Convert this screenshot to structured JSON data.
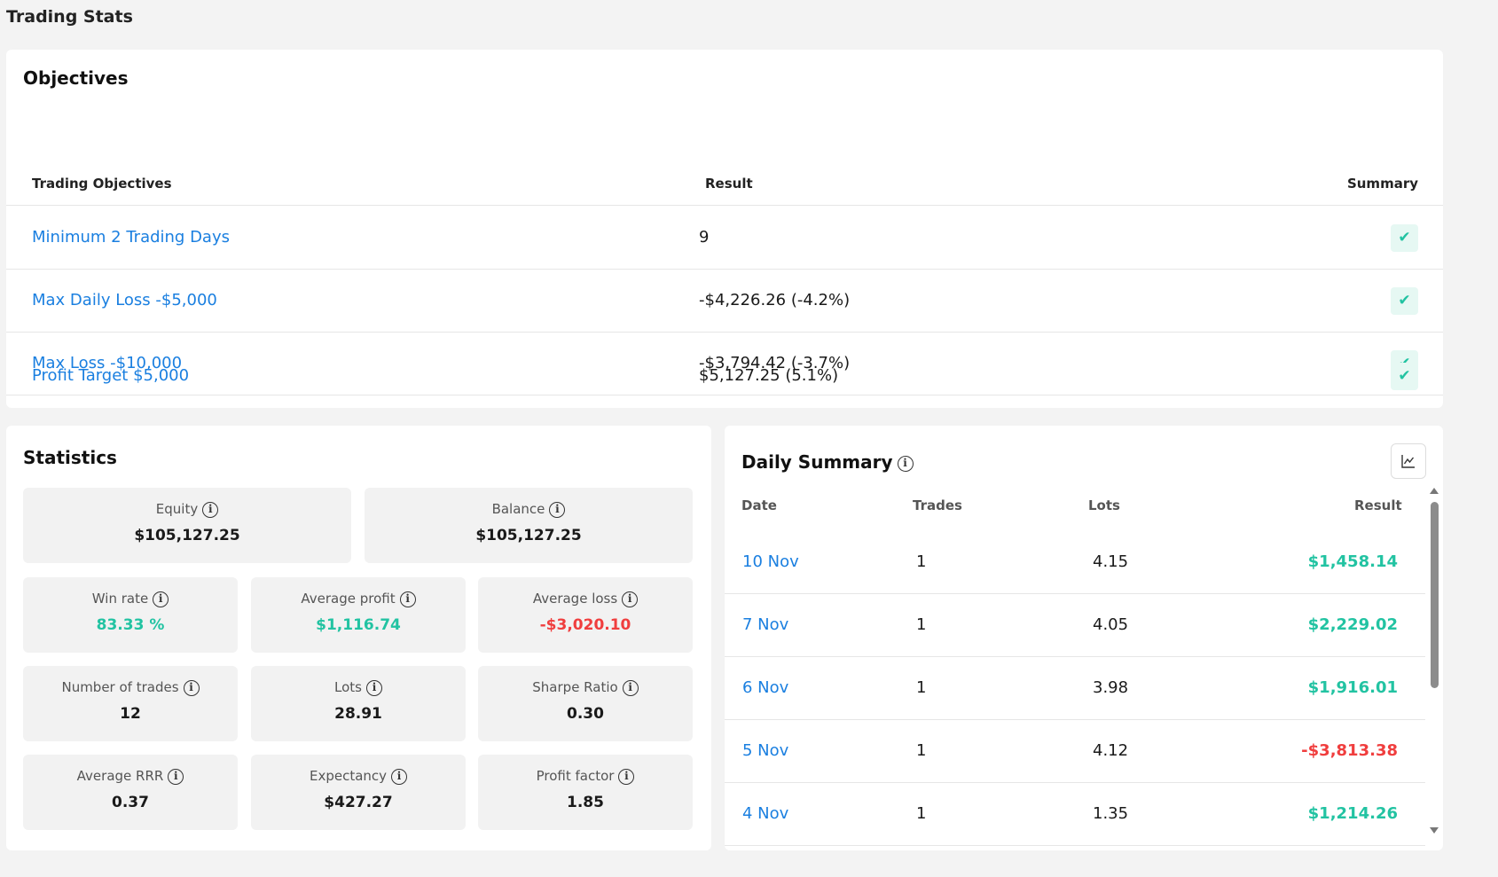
{
  "page_title": "Trading Stats",
  "objectives": {
    "title": "Objectives",
    "headers": {
      "objective": "Trading Objectives",
      "result": "Result",
      "summary": "Summary"
    },
    "rows": [
      {
        "name": "Minimum 2 Trading Days",
        "result": "9",
        "status": "✔"
      },
      {
        "name": "Max Daily Loss -$5,000",
        "result": "-$4,226.26 (-4.2%)",
        "status": "✔"
      },
      {
        "name": "Max Loss -$10,000",
        "result": "-$3,794.42 (-3.7%)",
        "status": "✔"
      },
      {
        "name": "Profit Target $5,000",
        "result": "$5,127.25 (5.1%)",
        "status": "✔"
      }
    ]
  },
  "statistics": {
    "title": "Statistics",
    "info_icon": "i",
    "tiles": [
      {
        "label": "Equity",
        "value": "$105,127.25",
        "tone": "neutral"
      },
      {
        "label": "Balance",
        "value": "$105,127.25",
        "tone": "neutral"
      },
      {
        "label": "Win rate",
        "value": "83.33 %",
        "tone": "positive"
      },
      {
        "label": "Average profit",
        "value": "$1,116.74",
        "tone": "positive"
      },
      {
        "label": "Average loss",
        "value": "-$3,020.10",
        "tone": "negative"
      },
      {
        "label": "Number of trades",
        "value": "12",
        "tone": "neutral"
      },
      {
        "label": "Lots",
        "value": "28.91",
        "tone": "neutral"
      },
      {
        "label": "Sharpe Ratio",
        "value": "0.30",
        "tone": "neutral"
      },
      {
        "label": "Average RRR",
        "value": "0.37",
        "tone": "neutral"
      },
      {
        "label": "Expectancy",
        "value": "$427.27",
        "tone": "neutral"
      },
      {
        "label": "Profit factor",
        "value": "1.85",
        "tone": "neutral"
      }
    ]
  },
  "daily_summary": {
    "title": "Daily Summary",
    "chart_button_icon": "line-chart-icon",
    "headers": {
      "date": "Date",
      "trades": "Trades",
      "lots": "Lots",
      "result": "Result"
    },
    "rows": [
      {
        "date": "10 Nov",
        "trades": "1",
        "lots": "4.15",
        "result": "$1,458.14",
        "tone": "positive"
      },
      {
        "date": "7 Nov",
        "trades": "1",
        "lots": "4.05",
        "result": "$2,229.02",
        "tone": "positive"
      },
      {
        "date": "6 Nov",
        "trades": "1",
        "lots": "3.98",
        "result": "$1,916.01",
        "tone": "positive"
      },
      {
        "date": "5 Nov",
        "trades": "1",
        "lots": "4.12",
        "result": "-$3,813.38",
        "tone": "negative"
      },
      {
        "date": "4 Nov",
        "trades": "1",
        "lots": "1.35",
        "result": "$1,214.26",
        "tone": "positive"
      }
    ]
  },
  "colors": {
    "link": "#1a7fe0",
    "positive": "#22c3a2",
    "negative": "#f03e3e",
    "neutral": "#1a1a1a"
  }
}
